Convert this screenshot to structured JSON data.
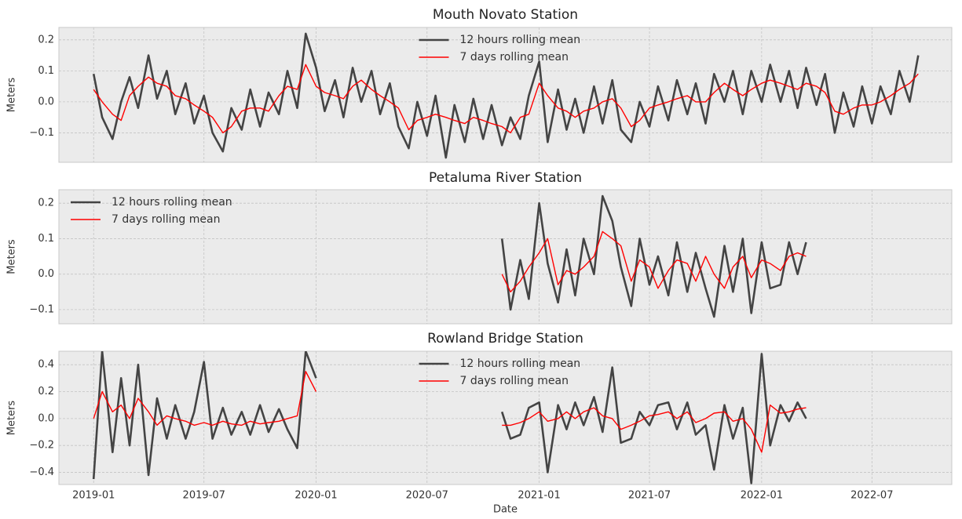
{
  "chart_data": [
    {
      "type": "line",
      "title": "Mouth Novato Station",
      "ylabel": "Meters",
      "legend": "upper center",
      "xlim": [
        "2018-11-05",
        "2022-11-09"
      ],
      "xticks": [
        "2019-01",
        "2019-07",
        "2020-01",
        "2020-07",
        "2021-01",
        "2021-07",
        "2022-01",
        "2022-07"
      ],
      "ylim": [
        -0.195,
        0.24
      ],
      "yticks": [
        {
          "value": -0.1,
          "label": "−0.1"
        },
        {
          "value": 0,
          "label": "0.0"
        },
        0.1,
        0.2
      ],
      "grid": true,
      "x": [
        "2019-01-01",
        "2019-01-15",
        "2019-02-01",
        "2019-02-15",
        "2019-03-01",
        "2019-03-15",
        "2019-04-01",
        "2019-04-15",
        "2019-05-01",
        "2019-05-15",
        "2019-06-01",
        "2019-06-15",
        "2019-07-01",
        "2019-07-15",
        "2019-08-01",
        "2019-08-15",
        "2019-09-01",
        "2019-09-15",
        "2019-10-01",
        "2019-10-15",
        "2019-11-01",
        "2019-11-15",
        "2019-12-01",
        "2019-12-15",
        "2020-01-01",
        "2020-01-15",
        "2020-02-01",
        "2020-02-15",
        "2020-03-01",
        "2020-03-15",
        "2020-04-01",
        "2020-04-15",
        "2020-05-01",
        "2020-05-15",
        "2020-06-01",
        "2020-06-15",
        "2020-07-01",
        "2020-07-15",
        "2020-08-01",
        "2020-08-15",
        "2020-09-01",
        "2020-09-15",
        "2020-10-01",
        "2020-10-15",
        "2020-11-01",
        "2020-11-15",
        "2020-12-01",
        "2020-12-15",
        "2021-01-01",
        "2021-01-15",
        "2021-02-01",
        "2021-02-15",
        "2021-03-01",
        "2021-03-15",
        "2021-04-01",
        "2021-04-15",
        "2021-05-01",
        "2021-05-15",
        "2021-06-01",
        "2021-06-15",
        "2021-07-01",
        "2021-07-15",
        "2021-08-01",
        "2021-08-15",
        "2021-09-01",
        "2021-09-15",
        "2021-10-01",
        "2021-10-15",
        "2021-11-01",
        "2021-11-15",
        "2021-12-01",
        "2021-12-15",
        "2022-01-01",
        "2022-01-15",
        "2022-02-01",
        "2022-02-15",
        "2022-03-01",
        "2022-03-15",
        "2022-04-01",
        "2022-04-15",
        "2022-05-01",
        "2022-05-15",
        "2022-06-01",
        "2022-06-15",
        "2022-07-01",
        "2022-07-15",
        "2022-08-01",
        "2022-08-15",
        "2022-09-01",
        "2022-09-15"
      ],
      "series": [
        {
          "name": "12 hours rolling mean",
          "color": "#444444",
          "values": [
            0.09,
            -0.05,
            -0.12,
            0.0,
            0.08,
            -0.02,
            0.15,
            0.01,
            0.1,
            -0.04,
            0.06,
            -0.07,
            0.02,
            -0.1,
            -0.16,
            -0.02,
            -0.09,
            0.04,
            -0.08,
            0.03,
            -0.04,
            0.1,
            -0.02,
            0.22,
            0.11,
            -0.03,
            0.07,
            -0.05,
            0.11,
            0.0,
            0.1,
            -0.04,
            0.06,
            -0.08,
            -0.15,
            0.0,
            -0.11,
            0.02,
            -0.18,
            -0.01,
            -0.13,
            0.01,
            -0.12,
            -0.01,
            -0.14,
            -0.05,
            -0.12,
            0.02,
            0.13,
            -0.13,
            0.04,
            -0.09,
            0.01,
            -0.1,
            0.05,
            -0.07,
            0.07,
            -0.09,
            -0.13,
            0.0,
            -0.08,
            0.05,
            -0.06,
            0.07,
            -0.04,
            0.06,
            -0.07,
            0.09,
            0.0,
            0.1,
            -0.04,
            0.1,
            0.0,
            0.12,
            0.0,
            0.1,
            -0.02,
            0.11,
            -0.01,
            0.09,
            -0.1,
            0.03,
            -0.08,
            0.05,
            -0.07,
            0.05,
            -0.04,
            0.1,
            0.0,
            0.15
          ]
        },
        {
          "name": "7 days rolling mean",
          "color": "#ff0000",
          "values": [
            0.04,
            0.0,
            -0.04,
            -0.06,
            0.02,
            0.05,
            0.08,
            0.06,
            0.05,
            0.02,
            0.01,
            -0.01,
            -0.03,
            -0.05,
            -0.1,
            -0.08,
            -0.03,
            -0.02,
            -0.02,
            -0.03,
            0.02,
            0.05,
            0.04,
            0.12,
            0.05,
            0.03,
            0.02,
            0.01,
            0.05,
            0.07,
            0.04,
            0.02,
            0.0,
            -0.02,
            -0.09,
            -0.06,
            -0.05,
            -0.04,
            -0.05,
            -0.06,
            -0.07,
            -0.05,
            -0.06,
            -0.07,
            -0.08,
            -0.1,
            -0.05,
            -0.04,
            0.06,
            0.02,
            -0.02,
            -0.03,
            -0.05,
            -0.03,
            -0.02,
            0.0,
            0.01,
            -0.02,
            -0.08,
            -0.06,
            -0.02,
            -0.01,
            0.0,
            0.01,
            0.02,
            0.0,
            0.0,
            0.03,
            0.06,
            0.04,
            0.02,
            0.04,
            0.06,
            0.07,
            0.06,
            0.05,
            0.04,
            0.06,
            0.05,
            0.03,
            -0.03,
            -0.04,
            -0.02,
            -0.01,
            -0.01,
            0.0,
            0.02,
            0.04,
            0.06,
            0.09
          ]
        }
      ]
    },
    {
      "type": "line",
      "title": "Petaluma River Station",
      "ylabel": "Meters",
      "legend": "upper left",
      "xlim": [
        "2018-11-05",
        "2022-11-09"
      ],
      "xticks": [
        "2019-01",
        "2019-07",
        "2020-01",
        "2020-07",
        "2021-01",
        "2021-07",
        "2022-01",
        "2022-07"
      ],
      "ylim": [
        -0.14,
        0.238
      ],
      "yticks": [
        {
          "value": -0.1,
          "label": "−0.1"
        },
        {
          "value": 0,
          "label": "0.0"
        },
        0.1,
        0.2
      ],
      "grid": true,
      "x": [
        "2020-11-01",
        "2020-11-15",
        "2020-12-01",
        "2020-12-15",
        "2021-01-01",
        "2021-01-15",
        "2021-02-01",
        "2021-02-15",
        "2021-03-01",
        "2021-03-15",
        "2021-04-01",
        "2021-04-15",
        "2021-05-01",
        "2021-05-15",
        "2021-06-01",
        "2021-06-15",
        "2021-07-01",
        "2021-07-15",
        "2021-08-01",
        "2021-08-15",
        "2021-09-01",
        "2021-09-15",
        "2021-10-01",
        "2021-10-15",
        "2021-11-01",
        "2021-11-15",
        "2021-12-01",
        "2021-12-15",
        "2022-01-01",
        "2022-01-15",
        "2022-02-01",
        "2022-02-15",
        "2022-03-01",
        "2022-03-15"
      ],
      "series": [
        {
          "name": "12 hours rolling mean",
          "color": "#444444",
          "values": [
            0.1,
            -0.1,
            0.04,
            -0.07,
            0.2,
            0.03,
            -0.08,
            0.07,
            -0.06,
            0.1,
            0.0,
            0.22,
            0.15,
            0.02,
            -0.09,
            0.1,
            -0.03,
            0.05,
            -0.06,
            0.09,
            -0.05,
            0.06,
            -0.04,
            -0.12,
            0.08,
            -0.05,
            0.1,
            -0.11,
            0.09,
            -0.04,
            -0.03,
            0.09,
            0.0,
            0.09
          ]
        },
        {
          "name": "7 days rolling mean",
          "color": "#ff0000",
          "values": [
            0.0,
            -0.05,
            -0.02,
            0.02,
            0.06,
            0.1,
            -0.03,
            0.01,
            0.0,
            0.02,
            0.05,
            0.12,
            0.1,
            0.08,
            -0.02,
            0.04,
            0.02,
            -0.04,
            0.01,
            0.04,
            0.03,
            -0.02,
            0.05,
            0.0,
            -0.04,
            0.02,
            0.05,
            -0.01,
            0.04,
            0.03,
            0.01,
            0.05,
            0.06,
            0.05
          ]
        }
      ]
    },
    {
      "type": "line",
      "title": "Rowland Bridge Station",
      "ylabel": "Meters",
      "xlabel": "Date",
      "legend": "upper center",
      "xlim": [
        "2018-11-05",
        "2022-11-09"
      ],
      "xticks": [
        "2019-01",
        "2019-07",
        "2020-01",
        "2020-07",
        "2021-01",
        "2021-07",
        "2022-01",
        "2022-07"
      ],
      "ylim": [
        -0.49,
        0.5
      ],
      "yticks": [
        {
          "value": -0.4,
          "label": "−0.4"
        },
        {
          "value": -0.2,
          "label": "−0.2"
        },
        {
          "value": 0,
          "label": "0.0"
        },
        0.2,
        0.4
      ],
      "grid": true,
      "x": [
        "2019-01-01",
        "2019-01-15",
        "2019-02-01",
        "2019-02-15",
        "2019-03-01",
        "2019-03-15",
        "2019-04-01",
        "2019-04-15",
        "2019-05-01",
        "2019-05-15",
        "2019-06-01",
        "2019-06-15",
        "2019-07-01",
        "2019-07-15",
        "2019-08-01",
        "2019-08-15",
        "2019-09-01",
        "2019-09-15",
        "2019-10-01",
        "2019-10-15",
        "2019-11-01",
        "2019-11-15",
        "2019-12-01",
        "2019-12-15",
        "2020-01-01",
        "2020-06-01",
        "2020-11-01",
        "2020-11-15",
        "2020-12-01",
        "2020-12-15",
        "2021-01-01",
        "2021-01-15",
        "2021-02-01",
        "2021-02-15",
        "2021-03-01",
        "2021-03-15",
        "2021-04-01",
        "2021-04-15",
        "2021-05-01",
        "2021-05-15",
        "2021-06-01",
        "2021-06-15",
        "2021-07-01",
        "2021-07-15",
        "2021-08-01",
        "2021-08-15",
        "2021-09-01",
        "2021-09-15",
        "2021-10-01",
        "2021-10-15",
        "2021-11-01",
        "2021-11-15",
        "2021-12-01",
        "2021-12-15",
        "2022-01-01",
        "2022-01-15",
        "2022-02-01",
        "2022-02-15",
        "2022-03-01",
        "2022-03-15"
      ],
      "series": [
        {
          "name": "12 hours rolling mean",
          "color": "#444444",
          "values": [
            -0.45,
            0.5,
            -0.25,
            0.3,
            -0.2,
            0.4,
            -0.42,
            0.15,
            -0.15,
            0.1,
            -0.15,
            0.05,
            0.42,
            -0.15,
            0.08,
            -0.12,
            0.05,
            -0.12,
            0.1,
            -0.1,
            0.07,
            -0.08,
            -0.22,
            0.5,
            0.3,
            null,
            0.05,
            -0.15,
            -0.12,
            0.08,
            0.12,
            -0.4,
            0.1,
            -0.08,
            0.12,
            -0.05,
            0.16,
            -0.1,
            0.38,
            -0.18,
            -0.15,
            0.05,
            -0.05,
            0.1,
            0.12,
            -0.08,
            0.12,
            -0.12,
            -0.05,
            -0.38,
            0.1,
            -0.15,
            0.08,
            -0.48,
            0.48,
            -0.2,
            0.1,
            -0.02,
            0.12,
            0.0
          ]
        },
        {
          "name": "7 days rolling mean",
          "color": "#ff0000",
          "values": [
            0.0,
            0.2,
            0.05,
            0.1,
            0.0,
            0.15,
            0.05,
            -0.05,
            0.02,
            0.0,
            -0.02,
            -0.05,
            -0.03,
            -0.05,
            -0.02,
            -0.04,
            -0.05,
            -0.02,
            -0.04,
            -0.03,
            -0.02,
            0.0,
            0.02,
            0.35,
            0.2,
            null,
            -0.05,
            -0.05,
            -0.03,
            0.0,
            0.05,
            -0.02,
            0.0,
            0.05,
            0.0,
            0.05,
            0.08,
            0.02,
            0.0,
            -0.08,
            -0.05,
            -0.02,
            0.02,
            0.03,
            0.05,
            0.0,
            0.05,
            -0.03,
            0.0,
            0.04,
            0.05,
            -0.02,
            0.0,
            -0.08,
            -0.25,
            0.1,
            0.04,
            0.05,
            0.07,
            0.08
          ]
        }
      ]
    }
  ]
}
